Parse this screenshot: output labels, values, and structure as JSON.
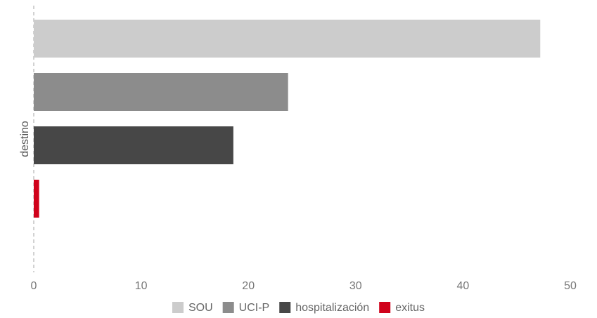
{
  "chart_data": {
    "type": "bar",
    "orientation": "horizontal",
    "ylabel": "destino",
    "xlabel": "",
    "xlim": [
      0,
      50
    ],
    "xticks": [
      0,
      10,
      20,
      30,
      40,
      50
    ],
    "grid": false,
    "legend_position": "bottom",
    "categories": [
      "SOU",
      "UCI-P",
      "hospitalización",
      "exitus"
    ],
    "values": [
      47.2,
      23.7,
      18.6,
      0.5
    ],
    "colors": [
      "#cccccc",
      "#8c8c8c",
      "#474747",
      "#d0021b"
    ]
  }
}
